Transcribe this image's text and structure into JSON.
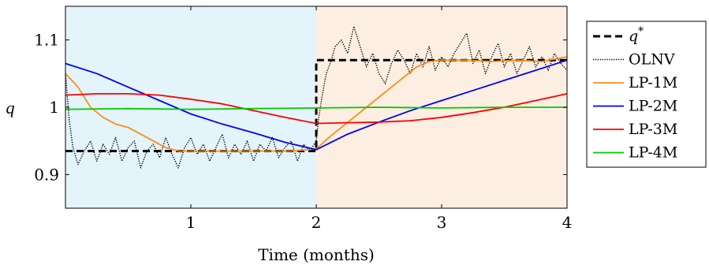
{
  "chart_data": {
    "type": "line",
    "xlabel": "Time (months)",
    "ylabel": "q",
    "xlim": [
      0,
      4
    ],
    "ylim": [
      0.85,
      1.15
    ],
    "xticks": [
      1,
      2,
      3,
      4
    ],
    "xtick_labels": [
      "1",
      "2",
      "3",
      "4"
    ],
    "yticks": [
      0.9,
      1.0,
      1.1
    ],
    "ytick_labels": [
      "0.9",
      "1",
      "1.1"
    ],
    "grid": false,
    "legend_position": "right",
    "shaded_regions": [
      {
        "x": [
          0,
          2
        ],
        "color": "#e3f4fb"
      },
      {
        "x": [
          2,
          4
        ],
        "color": "#fcefe2"
      }
    ],
    "series": [
      {
        "name": "q*",
        "color": "#000000",
        "style": "dashed",
        "x": [
          0,
          2,
          2,
          4
        ],
        "y": [
          0.935,
          0.935,
          1.07,
          1.07
        ]
      },
      {
        "name": "OLNV",
        "color": "#000000",
        "style": "dotted",
        "x": [
          0,
          0.03,
          0.06,
          0.1,
          0.15,
          0.2,
          0.25,
          0.3,
          0.35,
          0.4,
          0.45,
          0.5,
          0.55,
          0.6,
          0.65,
          0.7,
          0.75,
          0.8,
          0.85,
          0.9,
          0.95,
          1.0,
          1.05,
          1.1,
          1.15,
          1.2,
          1.25,
          1.3,
          1.35,
          1.4,
          1.45,
          1.5,
          1.55,
          1.6,
          1.65,
          1.7,
          1.75,
          1.8,
          1.85,
          1.9,
          1.95,
          2.0,
          2.02,
          2.05,
          2.08,
          2.12,
          2.15,
          2.2,
          2.25,
          2.3,
          2.35,
          2.4,
          2.45,
          2.5,
          2.55,
          2.6,
          2.65,
          2.7,
          2.75,
          2.8,
          2.85,
          2.9,
          2.95,
          3.0,
          3.05,
          3.1,
          3.15,
          3.2,
          3.25,
          3.3,
          3.35,
          3.4,
          3.45,
          3.5,
          3.55,
          3.6,
          3.65,
          3.7,
          3.75,
          3.8,
          3.85,
          3.9,
          3.95,
          4.0
        ],
        "y": [
          1.05,
          0.98,
          0.94,
          0.915,
          0.935,
          0.95,
          0.92,
          0.945,
          0.93,
          0.955,
          0.92,
          0.94,
          0.95,
          0.91,
          0.935,
          0.945,
          0.925,
          0.955,
          0.93,
          0.91,
          0.94,
          0.955,
          0.93,
          0.945,
          0.92,
          0.94,
          0.96,
          0.925,
          0.945,
          0.93,
          0.95,
          0.92,
          0.945,
          0.935,
          0.955,
          0.925,
          0.94,
          0.95,
          0.92,
          0.945,
          0.935,
          0.95,
          0.985,
          1.02,
          1.05,
          1.07,
          1.09,
          1.1,
          1.08,
          1.12,
          1.09,
          1.06,
          1.08,
          1.05,
          1.035,
          1.065,
          1.085,
          1.07,
          1.05,
          1.08,
          1.06,
          1.09,
          1.055,
          1.075,
          1.06,
          1.08,
          1.095,
          1.11,
          1.065,
          1.085,
          1.05,
          1.075,
          1.095,
          1.06,
          1.08,
          1.05,
          1.07,
          1.09,
          1.06,
          1.075,
          1.055,
          1.08,
          1.065,
          1.055
        ]
      },
      {
        "name": "LP-1M",
        "color": "#ff8c1a",
        "style": "solid",
        "x": [
          0,
          0.1,
          0.2,
          0.3,
          0.4,
          0.5,
          0.6,
          0.7,
          0.8,
          0.9,
          1.0,
          1.2,
          1.4,
          1.6,
          1.8,
          2.0,
          2.1,
          2.2,
          2.3,
          2.4,
          2.5,
          2.6,
          2.7,
          2.8,
          2.9,
          3.0,
          3.2,
          3.4,
          3.6,
          3.8,
          4.0
        ],
        "y": [
          1.05,
          1.03,
          1.0,
          0.985,
          0.975,
          0.97,
          0.96,
          0.95,
          0.94,
          0.935,
          0.935,
          0.935,
          0.935,
          0.935,
          0.935,
          0.938,
          0.955,
          0.97,
          0.985,
          1.0,
          1.015,
          1.03,
          1.045,
          1.06,
          1.068,
          1.07,
          1.07,
          1.068,
          1.07,
          1.068,
          1.075
        ]
      },
      {
        "name": "LP-2M",
        "color": "#0000ff",
        "style": "solid",
        "x": [
          0,
          0.25,
          0.5,
          0.75,
          1.0,
          1.25,
          1.5,
          1.75,
          2.0,
          2.25,
          2.5,
          2.75,
          3.0,
          3.25,
          3.5,
          3.75,
          4.0
        ],
        "y": [
          1.065,
          1.05,
          1.03,
          1.01,
          0.99,
          0.975,
          0.962,
          0.948,
          0.937,
          0.96,
          0.978,
          0.995,
          1.01,
          1.025,
          1.04,
          1.055,
          1.07
        ]
      },
      {
        "name": "LP-3M",
        "color": "#ff0000",
        "style": "solid",
        "x": [
          0,
          0.25,
          0.5,
          0.75,
          1.0,
          1.25,
          1.5,
          1.75,
          2.0,
          2.25,
          2.5,
          2.75,
          3.0,
          3.25,
          3.5,
          3.75,
          4.0
        ],
        "y": [
          1.018,
          1.02,
          1.02,
          1.018,
          1.012,
          1.005,
          0.995,
          0.985,
          0.976,
          0.977,
          0.978,
          0.98,
          0.985,
          0.992,
          1.0,
          1.01,
          1.02
        ]
      },
      {
        "name": "LP-4M",
        "color": "#00cc00",
        "style": "solid",
        "x": [
          0,
          0.5,
          1.0,
          1.5,
          2.0,
          2.5,
          3.0,
          3.5,
          4.0
        ],
        "y": [
          0.997,
          0.998,
          0.997,
          0.998,
          0.999,
          1.0,
          0.999,
          1.0,
          1.0
        ]
      }
    ]
  }
}
